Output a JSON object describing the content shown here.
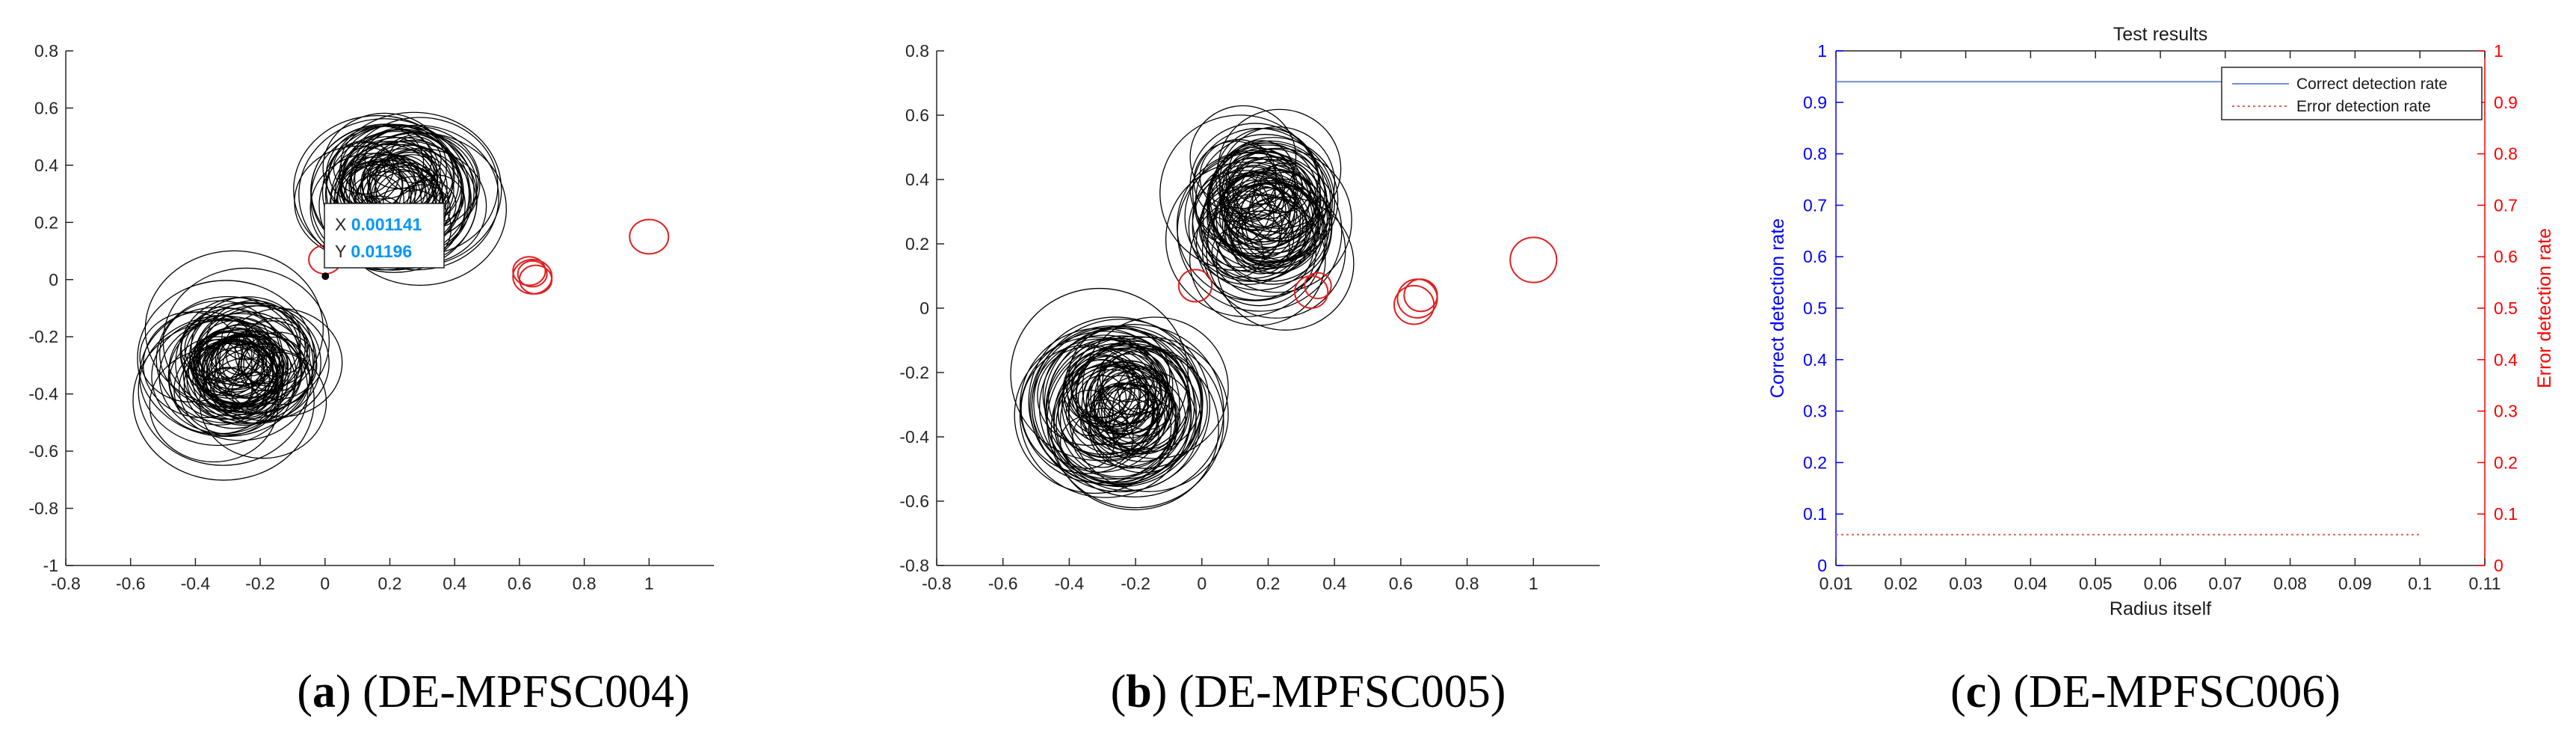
{
  "charts": [
    {
      "caption_letter": "a",
      "caption_text": "(DE-MPFSC004)",
      "chart_data": {
        "type": "scatter",
        "xlim": [
          -0.8,
          1.2
        ],
        "ylim": [
          -1,
          0.8
        ],
        "x_ticks": [
          "-0.8",
          "-0.6",
          "-0.4",
          "-0.2",
          "0",
          "0.2",
          "0.4",
          "0.6",
          "0.8",
          "1"
        ],
        "y_ticks": [
          "-1",
          "-0.8",
          "-0.6",
          "-0.4",
          "-0.2",
          "0",
          "0.2",
          "0.4",
          "0.6",
          "0.8"
        ],
        "clusters": [
          {
            "color": "#000000",
            "count": 70,
            "cx": 0.22,
            "cy": 0.3,
            "sx": 0.09,
            "sy": 0.08,
            "rmin": 0.08,
            "rmax": 0.27
          },
          {
            "color": "#000000",
            "count": 80,
            "cx": -0.26,
            "cy": -0.3,
            "sx": 0.09,
            "sy": 0.09,
            "rmin": 0.07,
            "rmax": 0.28
          }
        ],
        "red_circles": [
          {
            "x": 0.0,
            "y": 0.07,
            "r": 0.05
          },
          {
            "x": 0.63,
            "y": 0.03,
            "r": 0.05
          },
          {
            "x": 0.64,
            "y": 0.01,
            "r": 0.06
          },
          {
            "x": 0.65,
            "y": 0.0,
            "r": 0.05
          },
          {
            "x": 0.64,
            "y": 0.02,
            "r": 0.045
          },
          {
            "x": 1.0,
            "y": 0.15,
            "r": 0.06
          }
        ],
        "datatip": {
          "x_label": "X",
          "x_value": "0.001141",
          "y_label": "Y",
          "y_value": "0.01196"
        }
      }
    },
    {
      "caption_letter": "b",
      "caption_text": "(DE-MPFSC005)",
      "chart_data": {
        "type": "scatter",
        "xlim": [
          -0.8,
          1.2
        ],
        "ylim": [
          -0.8,
          0.8
        ],
        "x_ticks": [
          "-0.8",
          "-0.6",
          "-0.4",
          "-0.2",
          "0",
          "0.2",
          "0.4",
          "0.6",
          "0.8",
          "1"
        ],
        "y_ticks": [
          "-0.8",
          "-0.6",
          "-0.4",
          "-0.2",
          "0",
          "0.2",
          "0.4",
          "0.6",
          "0.8"
        ],
        "clusters": [
          {
            "color": "#000000",
            "count": 75,
            "cx": 0.18,
            "cy": 0.3,
            "sx": 0.07,
            "sy": 0.12,
            "rmin": 0.07,
            "rmax": 0.25
          },
          {
            "color": "#000000",
            "count": 80,
            "cx": -0.25,
            "cy": -0.3,
            "sx": 0.08,
            "sy": 0.09,
            "rmin": 0.07,
            "rmax": 0.27
          }
        ],
        "red_circles": [
          {
            "x": -0.02,
            "y": 0.07,
            "r": 0.05
          },
          {
            "x": 0.33,
            "y": 0.05,
            "r": 0.05
          },
          {
            "x": 0.35,
            "y": 0.07,
            "r": 0.04
          },
          {
            "x": 0.65,
            "y": 0.03,
            "r": 0.06
          },
          {
            "x": 0.64,
            "y": 0.01,
            "r": 0.06
          },
          {
            "x": 0.66,
            "y": 0.04,
            "r": 0.05
          },
          {
            "x": 1.0,
            "y": 0.15,
            "r": 0.07
          }
        ]
      }
    },
    {
      "caption_letter": "c",
      "caption_text": "(DE-MPFSC006)",
      "chart_data": {
        "type": "line",
        "title": "Test results",
        "xlabel": "Radius itself",
        "ylabel_left": "Correct detection rate",
        "ylabel_right": "Error detection rate",
        "xlim": [
          0.01,
          0.11
        ],
        "ylim_left": [
          0,
          1
        ],
        "ylim_right": [
          0,
          1
        ],
        "x_ticks": [
          "0.01",
          "0.02",
          "0.03",
          "0.04",
          "0.05",
          "0.06",
          "0.07",
          "0.08",
          "0.09",
          "0.1",
          "0.11"
        ],
        "y_ticks": [
          "0",
          "0.1",
          "0.2",
          "0.3",
          "0.4",
          "0.5",
          "0.6",
          "0.7",
          "0.8",
          "0.9",
          "1"
        ],
        "legend_position": "top-right",
        "series": [
          {
            "name": "Correct detection rate",
            "axis": "left",
            "color": "#6f8fdc",
            "style": "solid",
            "x": [
              0.01,
              0.02,
              0.03,
              0.04,
              0.05,
              0.06,
              0.07,
              0.08,
              0.09,
              0.1
            ],
            "y": [
              0.94,
              0.94,
              0.94,
              0.94,
              0.94,
              0.94,
              0.94,
              0.94,
              0.94,
              0.94
            ]
          },
          {
            "name": "Error detection rate",
            "axis": "right",
            "color": "#e06060",
            "style": "dotted",
            "x": [
              0.01,
              0.02,
              0.03,
              0.04,
              0.05,
              0.06,
              0.07,
              0.08,
              0.09,
              0.1
            ],
            "y": [
              0.06,
              0.06,
              0.06,
              0.06,
              0.06,
              0.06,
              0.06,
              0.06,
              0.06,
              0.06
            ]
          }
        ],
        "colors": {
          "left_axis": "#0000ff",
          "right_axis": "#ff0000"
        }
      }
    }
  ]
}
